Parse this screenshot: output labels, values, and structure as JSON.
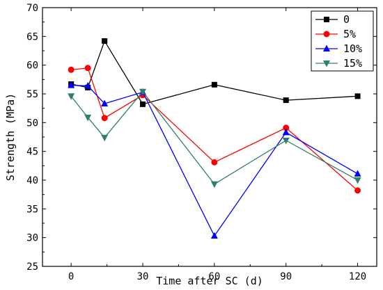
{
  "chart_data": {
    "type": "line",
    "xlabel": "Time after SC (d)",
    "ylabel": "Strength (MPa)",
    "xlim": [
      -12,
      128
    ],
    "ylim": [
      25,
      70
    ],
    "x_ticks": [
      0,
      30,
      60,
      90,
      120
    ],
    "y_ticks": [
      25,
      30,
      35,
      40,
      45,
      50,
      55,
      60,
      65,
      70
    ],
    "legend_position": "top-right",
    "grid": false,
    "series": [
      {
        "name": "0",
        "color": "#000000",
        "marker": "square",
        "x": [
          0,
          7,
          14,
          30,
          60,
          90,
          120
        ],
        "y": [
          56.7,
          56.1,
          64.2,
          53.2,
          56.6,
          53.9,
          54.6
        ]
      },
      {
        "name": "5%",
        "color": "#ff0000",
        "marker": "circle",
        "x": [
          0,
          7,
          14,
          30,
          60,
          90,
          120
        ],
        "y": [
          59.2,
          59.5,
          50.8,
          54.8,
          43.1,
          49.1,
          38.2
        ]
      },
      {
        "name": "10%",
        "color": "#0000ff",
        "marker": "triangle-up",
        "x": [
          0,
          7,
          14,
          30,
          60,
          90,
          120
        ],
        "y": [
          56.5,
          56.4,
          53.3,
          55.3,
          30.3,
          48.3,
          41.1
        ]
      },
      {
        "name": "15%",
        "color": "#2f7f6f",
        "marker": "triangle-down",
        "x": [
          0,
          7,
          14,
          30,
          60,
          90,
          120
        ],
        "y": [
          54.6,
          50.9,
          47.4,
          55.4,
          39.3,
          46.9,
          40.0
        ]
      }
    ]
  }
}
